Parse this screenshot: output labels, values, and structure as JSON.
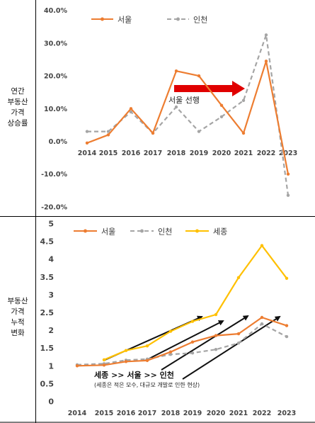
{
  "row_labels": {
    "top": [
      "연간",
      "부동산",
      "가격",
      "상승률"
    ],
    "bottom": [
      "부동산",
      "가격",
      "누적",
      "변화"
    ]
  },
  "colors": {
    "seoul": "#ed7d31",
    "incheon": "#a5a5a5",
    "sejong": "#ffc000",
    "arrow_red": "#e00000",
    "arrow_black": "#111111"
  },
  "chart_data": [
    {
      "type": "line",
      "x": [
        "2014",
        "2015",
        "2016",
        "2017",
        "2018",
        "2019",
        "2020",
        "2021",
        "2022",
        "2023"
      ],
      "series": [
        {
          "name": "서울",
          "values": [
            -0.5,
            2.0,
            10.0,
            2.5,
            21.5,
            20.0,
            11.0,
            2.5,
            24.5,
            -10.0
          ]
        },
        {
          "name": "인천",
          "values": [
            3.0,
            3.0,
            9.0,
            2.5,
            10.5,
            3.0,
            7.5,
            12.5,
            32.5,
            -16.5
          ]
        }
      ],
      "y_tick_labels": [
        "40.0%",
        "30.0%",
        "20.0%",
        "10.0%",
        "0.0%",
        "-10.0%",
        "-20.0%"
      ],
      "ylim": [
        -20,
        40
      ],
      "annotation": "서울 선행",
      "grid": false,
      "legend": "top"
    },
    {
      "type": "line",
      "x": [
        "2014",
        "2015",
        "2016",
        "2017",
        "2018",
        "2019",
        "2020",
        "2021",
        "2022",
        "2023"
      ],
      "series": [
        {
          "name": "서울",
          "values": [
            1.0,
            1.02,
            1.12,
            1.15,
            1.39,
            1.67,
            1.85,
            1.9,
            2.36,
            2.13
          ]
        },
        {
          "name": "인천",
          "values": [
            1.03,
            1.06,
            1.16,
            1.19,
            1.32,
            1.36,
            1.46,
            1.64,
            2.18,
            1.82
          ]
        },
        {
          "name": "세종",
          "values": [
            null,
            1.17,
            1.43,
            1.56,
            1.97,
            2.25,
            2.44,
            3.48,
            4.38,
            3.46
          ]
        }
      ],
      "y_tick_labels": [
        "5",
        "4.5",
        "4",
        "3.5",
        "3",
        "2.5",
        "2",
        "1.5",
        "1",
        "0.5",
        "0"
      ],
      "ylim": [
        0,
        5
      ],
      "annotation_title": "세종 >> 서울 >> 인천",
      "annotation_note": "(세종은 적은 모수, 대규모 개발로 인한 현상)",
      "grid": false,
      "legend": "top"
    }
  ]
}
